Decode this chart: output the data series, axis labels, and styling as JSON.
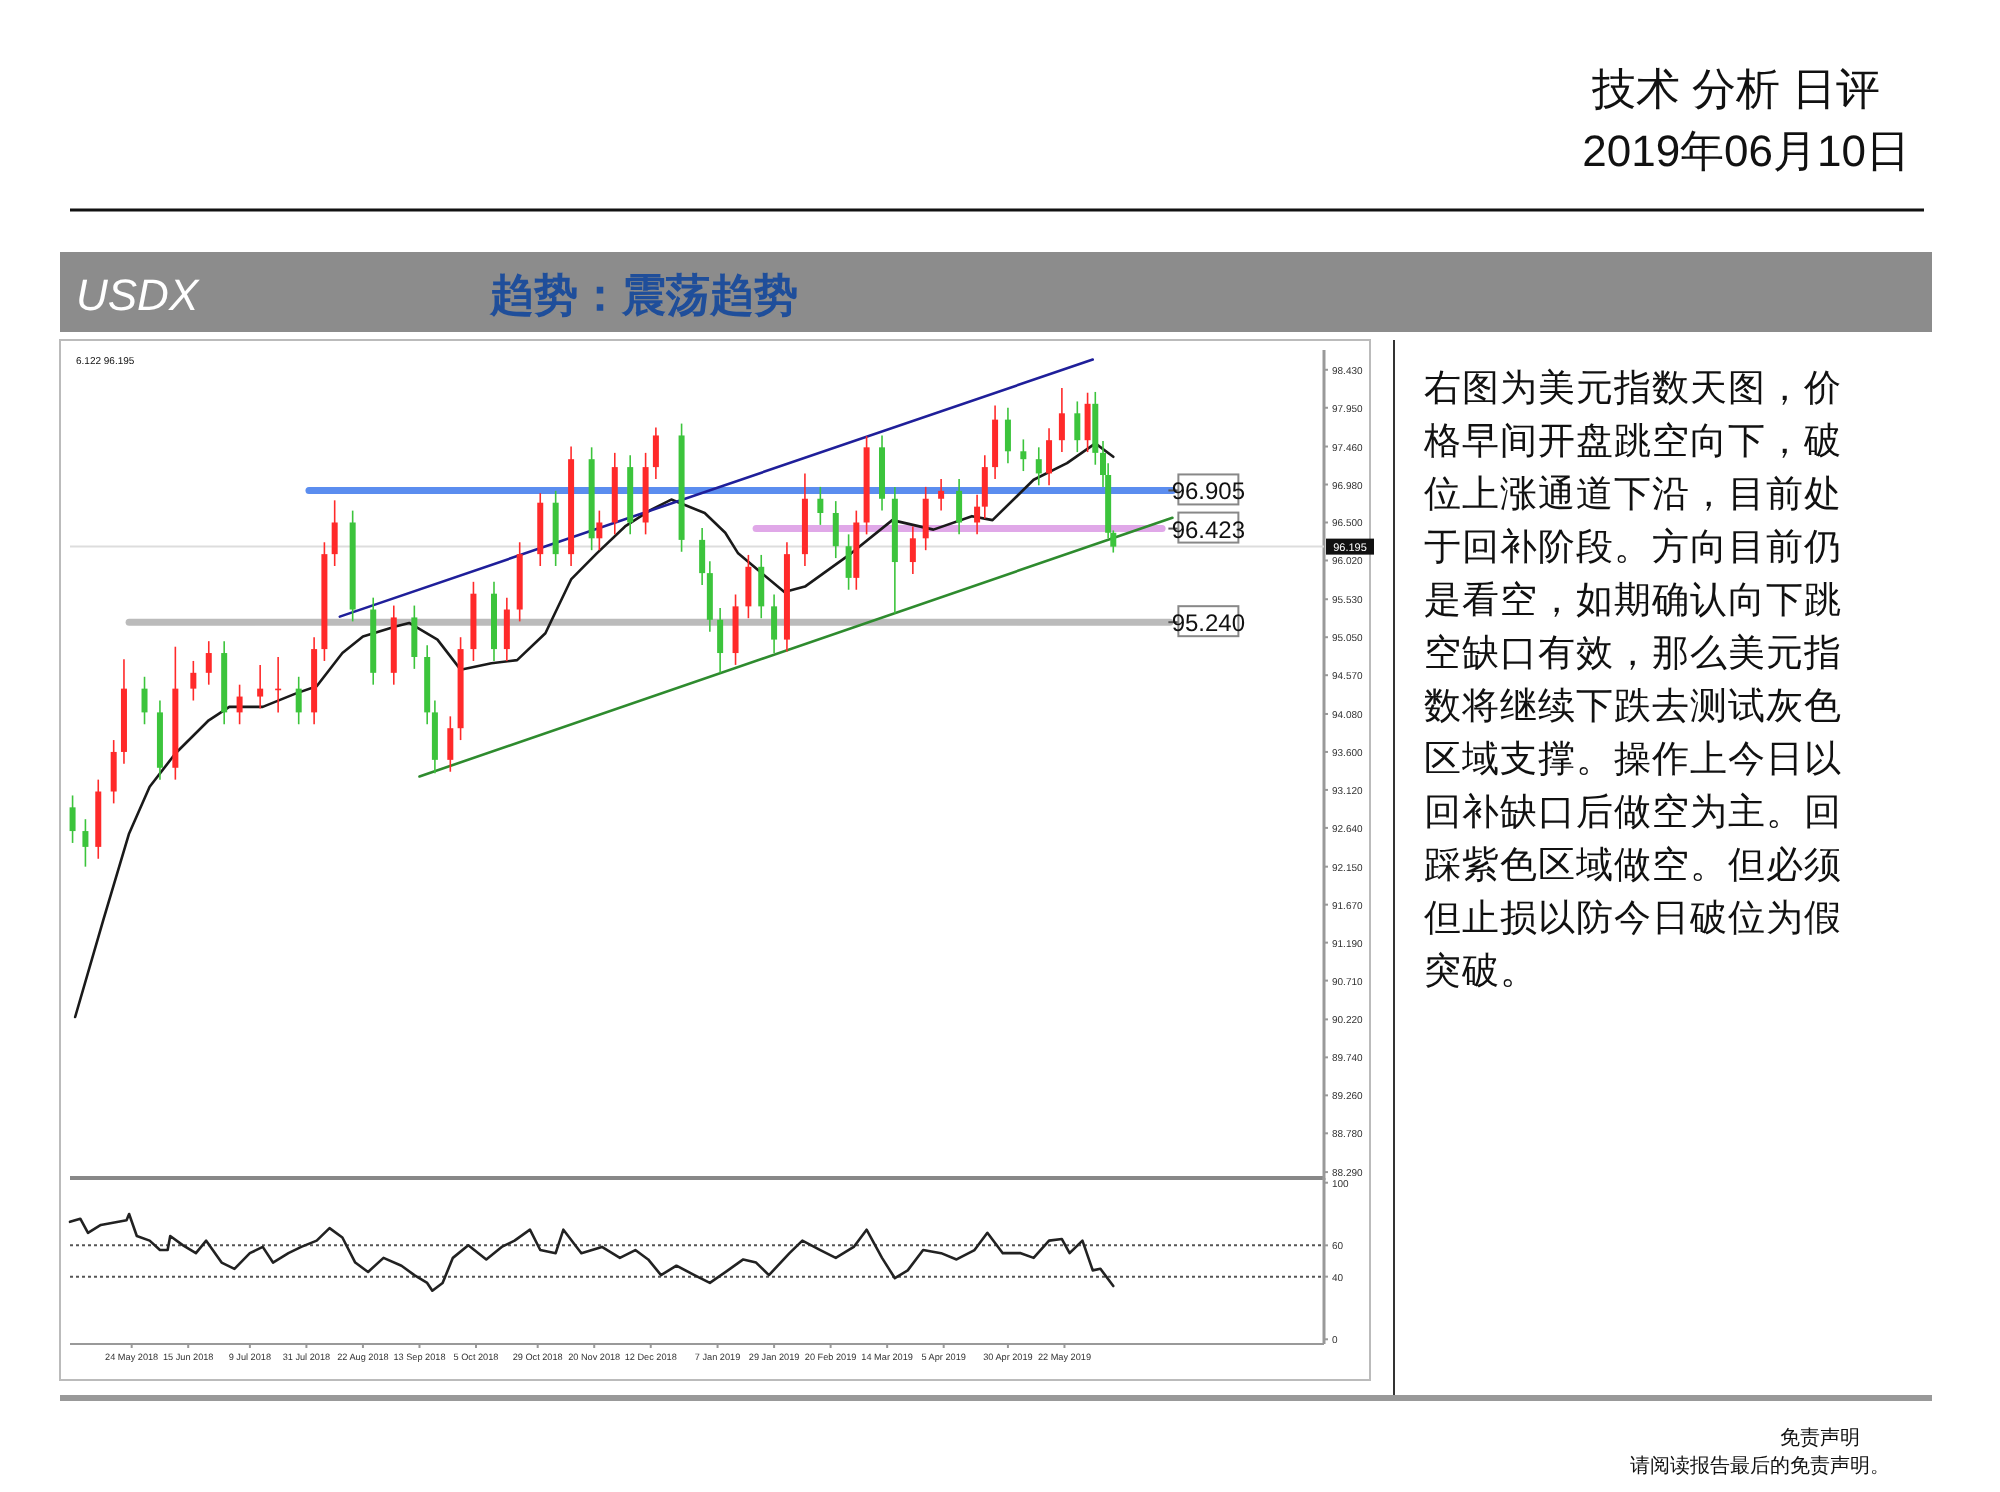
{
  "chart_data": [
    {
      "type": "candlestick",
      "title": "USDX",
      "subtitle": "趋势：震荡趋势",
      "tick_labels": "y",
      "annotations": [
        "技术 分析 日评",
        "2019年06月10日",
        "右图为美元指数天图，价格早间开盘跳空向下，破位上涨通道下沿，目前处于回补阶段。方向目前仍是看空，如期确认向下跳空缺口有效，那么美元指数将继续下跌去测试灰色区域支撑。操作上今日以回补缺口后做空为主。回踩紫色区域做空。但必须但止损以防今日破位为假突破。",
        "免责声明",
        "请阅读报告最后的免责声明。",
        "6.122 96.195",
        {
          "text": "96.905",
          "x": "2019-07-03",
          "y": 96.905
        },
        {
          "text": "96.423",
          "x": "2019-07-03",
          "y": 96.423
        },
        {
          "text": "95.240",
          "x": "2019-07-03",
          "y": 95.24
        }
      ],
      "xlim": [
        "2018-04-30",
        "2019-08-31"
      ],
      "ylim": [
        88.19,
        98.68
      ],
      "yticks": [
        {
          "value": 98.43,
          "label": "98.430"
        },
        {
          "value": 97.95,
          "label": "97.950"
        },
        {
          "value": 97.46,
          "label": "97.460"
        },
        {
          "value": 96.98,
          "label": "96.980"
        },
        {
          "value": 96.5,
          "label": "96.500"
        },
        {
          "value": 96.02,
          "label": "96.020"
        },
        {
          "value": 95.53,
          "label": "95.530"
        },
        {
          "value": 95.05,
          "label": "95.050"
        },
        {
          "value": 94.57,
          "label": "94.570"
        },
        {
          "value": 94.08,
          "label": "94.080"
        },
        {
          "value": 93.6,
          "label": "93.600"
        },
        {
          "value": 93.12,
          "label": "93.120"
        },
        {
          "value": 92.64,
          "label": "92.640"
        },
        {
          "value": 92.15,
          "label": "92.150"
        },
        {
          "value": 91.67,
          "label": "91.670"
        },
        {
          "value": 91.19,
          "label": "91.190"
        },
        {
          "value": 90.71,
          "label": "90.710"
        },
        {
          "value": 90.22,
          "label": "90.220"
        },
        {
          "value": 89.74,
          "label": "89.740"
        },
        {
          "value": 89.26,
          "label": "89.260"
        },
        {
          "value": 88.78,
          "label": "88.780"
        },
        {
          "value": 88.29,
          "label": "88.290"
        }
      ],
      "ref_lines": [
        {
          "axis": "y",
          "value": 96.195,
          "label": "96.195",
          "color": "#dddddd"
        }
      ],
      "x": [
        "2018-05-01",
        "2018-05-06",
        "2018-05-11",
        "2018-05-17",
        "2018-05-21",
        "2018-05-29",
        "2018-06-04",
        "2018-06-10",
        "2018-06-17",
        "2018-06-23",
        "2018-06-29",
        "2018-07-05",
        "2018-07-13",
        "2018-07-20",
        "2018-07-28",
        "2018-08-03",
        "2018-08-07",
        "2018-08-11",
        "2018-08-18",
        "2018-08-26",
        "2018-09-03",
        "2018-09-11",
        "2018-09-16",
        "2018-09-19",
        "2018-09-25",
        "2018-09-29",
        "2018-10-04",
        "2018-10-12",
        "2018-10-17",
        "2018-10-22",
        "2018-10-30",
        "2018-11-05",
        "2018-11-11",
        "2018-11-19",
        "2018-11-22",
        "2018-11-28",
        "2018-12-04",
        "2018-12-10",
        "2018-12-14",
        "2018-12-24",
        "2019-01-01",
        "2019-01-04",
        "2019-01-08",
        "2019-01-14",
        "2019-01-19",
        "2019-01-24",
        "2019-01-29",
        "2019-02-03",
        "2019-02-10",
        "2019-02-16",
        "2019-02-22",
        "2019-02-27",
        "2019-03-02",
        "2019-03-06",
        "2019-03-12",
        "2019-03-17",
        "2019-03-24",
        "2019-03-29",
        "2019-04-04",
        "2019-04-11",
        "2019-04-18",
        "2019-04-21",
        "2019-04-25",
        "2019-04-30",
        "2019-05-06",
        "2019-05-12",
        "2019-05-16",
        "2019-05-21",
        "2019-05-27",
        "2019-05-31",
        "2019-06-03",
        "2019-06-06",
        "2019-06-08",
        "2019-06-10"
      ],
      "ohlc": [
        [
          92.9,
          93.05,
          92.45,
          92.6
        ],
        [
          92.6,
          92.75,
          92.15,
          92.4
        ],
        [
          92.4,
          93.25,
          92.25,
          93.1
        ],
        [
          93.1,
          93.75,
          92.95,
          93.6
        ],
        [
          93.6,
          94.77,
          93.45,
          94.4
        ],
        [
          94.4,
          94.55,
          93.95,
          94.1
        ],
        [
          94.1,
          94.25,
          93.25,
          93.4
        ],
        [
          93.4,
          94.93,
          93.25,
          94.4
        ],
        [
          94.4,
          94.75,
          94.25,
          94.6
        ],
        [
          94.6,
          95.0,
          94.45,
          94.85
        ],
        [
          94.85,
          95.0,
          93.95,
          94.1
        ],
        [
          94.1,
          94.45,
          93.95,
          94.3
        ],
        [
          94.3,
          94.7,
          94.15,
          94.4
        ],
        [
          94.4,
          94.8,
          94.1,
          94.4
        ],
        [
          94.4,
          94.55,
          93.95,
          94.1
        ],
        [
          94.1,
          95.05,
          93.95,
          94.9
        ],
        [
          94.9,
          96.25,
          94.75,
          96.1
        ],
        [
          96.1,
          96.78,
          95.95,
          96.5
        ],
        [
          96.5,
          96.65,
          95.25,
          95.4
        ],
        [
          95.4,
          95.55,
          94.45,
          94.6
        ],
        [
          94.6,
          95.45,
          94.45,
          95.3
        ],
        [
          95.3,
          95.45,
          94.65,
          94.8
        ],
        [
          94.8,
          94.95,
          93.95,
          94.1
        ],
        [
          94.1,
          94.25,
          93.33,
          93.5
        ],
        [
          93.5,
          94.05,
          93.35,
          93.9
        ],
        [
          93.9,
          95.05,
          93.75,
          94.9
        ],
        [
          94.9,
          95.75,
          94.75,
          95.6
        ],
        [
          95.6,
          95.75,
          94.75,
          94.9
        ],
        [
          94.9,
          95.55,
          94.75,
          95.4
        ],
        [
          95.4,
          96.25,
          95.25,
          96.1
        ],
        [
          96.1,
          96.87,
          95.95,
          96.75
        ],
        [
          96.75,
          96.9,
          95.95,
          96.1
        ],
        [
          96.1,
          97.46,
          95.95,
          97.3
        ],
        [
          97.3,
          97.45,
          96.15,
          96.3
        ],
        [
          96.3,
          96.65,
          96.15,
          96.5
        ],
        [
          96.5,
          97.38,
          96.35,
          97.2
        ],
        [
          97.2,
          97.35,
          96.35,
          96.5
        ],
        [
          96.5,
          97.38,
          96.35,
          97.2
        ],
        [
          97.2,
          97.7,
          97.05,
          97.6
        ],
        [
          97.6,
          97.75,
          96.13,
          96.28
        ],
        [
          96.28,
          96.43,
          95.71,
          95.86
        ],
        [
          95.86,
          96.01,
          95.12,
          95.27
        ],
        [
          95.27,
          95.42,
          94.6,
          94.85
        ],
        [
          94.85,
          95.59,
          94.7,
          95.44
        ],
        [
          95.44,
          96.09,
          95.29,
          95.94
        ],
        [
          95.94,
          96.09,
          95.29,
          95.44
        ],
        [
          95.44,
          95.59,
          94.85,
          95.02
        ],
        [
          95.02,
          96.25,
          94.87,
          96.1
        ],
        [
          96.1,
          97.12,
          95.95,
          96.8
        ],
        [
          96.8,
          96.95,
          96.47,
          96.62
        ],
        [
          96.62,
          96.77,
          96.05,
          96.2
        ],
        [
          96.2,
          96.35,
          95.65,
          95.8
        ],
        [
          95.8,
          96.65,
          95.65,
          96.5
        ],
        [
          96.5,
          97.59,
          96.35,
          97.45
        ],
        [
          97.45,
          97.6,
          96.65,
          96.8
        ],
        [
          96.8,
          96.95,
          95.35,
          96.0
        ],
        [
          96.0,
          96.45,
          95.85,
          96.3
        ],
        [
          96.3,
          96.95,
          96.15,
          96.8
        ],
        [
          96.8,
          97.05,
          96.65,
          96.9
        ],
        [
          96.9,
          97.05,
          96.35,
          96.5
        ],
        [
          96.5,
          96.85,
          96.35,
          96.7
        ],
        [
          96.7,
          97.35,
          96.55,
          97.2
        ],
        [
          97.2,
          97.98,
          97.05,
          97.8
        ],
        [
          97.8,
          97.95,
          97.25,
          97.4
        ],
        [
          97.4,
          97.55,
          97.15,
          97.3
        ],
        [
          97.3,
          97.45,
          96.97,
          97.12
        ],
        [
          97.12,
          97.69,
          96.97,
          97.54
        ],
        [
          97.54,
          98.2,
          97.39,
          97.88
        ],
        [
          97.88,
          98.03,
          97.39,
          97.54
        ],
        [
          97.54,
          98.14,
          97.39,
          98.0
        ],
        [
          98.0,
          98.15,
          97.23,
          97.38
        ],
        [
          97.38,
          97.53,
          96.95,
          97.1
        ],
        [
          97.1,
          97.25,
          96.3,
          96.37
        ],
        [
          96.37,
          96.4,
          96.12,
          96.195
        ]
      ],
      "series": [
        {
          "type": "line",
          "color": "#1a1a1a",
          "x": [
            "2018-05-02",
            "2018-05-13",
            "2018-05-23",
            "2018-05-31",
            "2018-06-10",
            "2018-06-23",
            "2018-07-01",
            "2018-07-14",
            "2018-07-27",
            "2018-08-04",
            "2018-08-14",
            "2018-08-22",
            "2018-09-04",
            "2018-09-09",
            "2018-09-20",
            "2018-09-29",
            "2018-10-11",
            "2018-10-21",
            "2018-11-01",
            "2018-11-11",
            "2018-11-21",
            "2018-12-02",
            "2018-12-12",
            "2018-12-20",
            "2019-01-02",
            "2019-01-10",
            "2019-01-15",
            "2019-02-02",
            "2019-02-10",
            "2019-02-28",
            "2019-03-16",
            "2019-04-01",
            "2019-04-16",
            "2019-04-24",
            "2019-05-10",
            "2019-05-23",
            "2019-06-03",
            "2019-06-10"
          ],
          "values": [
            90.25,
            91.48,
            92.57,
            93.16,
            93.58,
            94.0,
            94.17,
            94.17,
            94.34,
            94.43,
            94.85,
            95.06,
            95.19,
            95.23,
            95.02,
            94.64,
            94.72,
            94.76,
            95.1,
            95.78,
            96.11,
            96.45,
            96.66,
            96.79,
            96.62,
            96.37,
            96.11,
            95.62,
            95.69,
            96.11,
            96.53,
            96.41,
            96.58,
            96.53,
            97.04,
            97.25,
            97.5,
            97.33
          ]
        },
        {
          "type": "line",
          "color": "#1f1f9a",
          "x": [
            "2018-08-13",
            "2019-06-02"
          ],
          "values": [
            95.31,
            98.56
          ]
        },
        {
          "type": "line",
          "color": "#2e8b2e",
          "x": [
            "2018-09-13",
            "2019-07-03"
          ],
          "values": [
            93.29,
            96.56
          ]
        },
        {
          "type": "line",
          "color": "#5b8def",
          "x": [
            "2018-08-01",
            "2019-07-03"
          ],
          "values": [
            96.905,
            96.905
          ]
        },
        {
          "type": "line",
          "color": "#e0a8e8",
          "x": [
            "2019-01-22",
            "2019-06-29"
          ],
          "values": [
            96.423,
            96.423
          ]
        },
        {
          "type": "line",
          "color": "#bbbbbb",
          "x": [
            "2018-05-23",
            "2019-07-02"
          ],
          "values": [
            95.24,
            95.24
          ]
        }
      ]
    },
    {
      "type": "line",
      "xlim": [
        "2018-04-30",
        "2019-08-31"
      ],
      "ylim": [
        -3,
        103
      ],
      "yticks": [
        0,
        40,
        60,
        100
      ],
      "xticks": [
        {
          "value": "2018-05-24",
          "label": "24 May 2018"
        },
        {
          "value": "2018-06-15",
          "label": "15 Jun 2018"
        },
        {
          "value": "2018-07-09",
          "label": "9 Jul 2018"
        },
        {
          "value": "2018-07-31",
          "label": "31 Jul 2018"
        },
        {
          "value": "2018-08-22",
          "label": "22 Aug 2018"
        },
        {
          "value": "2018-09-13",
          "label": "13 Sep 2018"
        },
        {
          "value": "2018-10-05",
          "label": "5 Oct 2018"
        },
        {
          "value": "2018-10-29",
          "label": "29 Oct 2018"
        },
        {
          "value": "2018-11-20",
          "label": "20 Nov 2018"
        },
        {
          "value": "2018-12-12",
          "label": "12 Dec 2018"
        },
        {
          "value": "2019-01-07",
          "label": "7 Jan 2019"
        },
        {
          "value": "2019-01-29",
          "label": "29 Jan 2019"
        },
        {
          "value": "2019-02-20",
          "label": "20 Feb 2019"
        },
        {
          "value": "2019-03-14",
          "label": "14 Mar 2019"
        },
        {
          "value": "2019-04-05",
          "label": "5 Apr 2019"
        },
        {
          "value": "2019-04-30",
          "label": "30 Apr 2019"
        },
        {
          "value": "2019-05-22",
          "label": "22 May 2019"
        }
      ],
      "ref_lines": [
        {
          "axis": "y",
          "value": 60,
          "color": "#555555",
          "line_style": "dotted"
        },
        {
          "axis": "y",
          "value": 40,
          "color": "#555555",
          "line_style": "dotted"
        }
      ],
      "series": [
        {
          "color": "#222222",
          "x": [
            "2018-04-30",
            "2018-05-04",
            "2018-05-07",
            "2018-05-12",
            "2018-05-22",
            "2018-05-23",
            "2018-05-26",
            "2018-05-31",
            "2018-06-04",
            "2018-06-07",
            "2018-06-08",
            "2018-06-13",
            "2018-06-18",
            "2018-06-22",
            "2018-06-28",
            "2018-07-03",
            "2018-07-09",
            "2018-07-14",
            "2018-07-18",
            "2018-07-24",
            "2018-07-29",
            "2018-08-04",
            "2018-08-09",
            "2018-08-14",
            "2018-08-19",
            "2018-08-24",
            "2018-08-30",
            "2018-09-06",
            "2018-09-11",
            "2018-09-16",
            "2018-09-18",
            "2018-09-22",
            "2018-09-26",
            "2018-10-02",
            "2018-10-09",
            "2018-10-15",
            "2018-10-20",
            "2018-10-26",
            "2018-10-30",
            "2018-11-05",
            "2018-11-08",
            "2018-11-15",
            "2018-11-23",
            "2018-11-30",
            "2018-12-06",
            "2018-12-11",
            "2018-12-16",
            "2018-12-22",
            "2018-12-29",
            "2019-01-04",
            "2019-01-11",
            "2019-01-17",
            "2019-01-22",
            "2019-01-27",
            "2019-02-04",
            "2019-02-09",
            "2019-02-16",
            "2019-02-22",
            "2019-03-01",
            "2019-03-06",
            "2019-03-12",
            "2019-03-17",
            "2019-03-22",
            "2019-03-28",
            "2019-04-04",
            "2019-04-10",
            "2019-04-17",
            "2019-04-22",
            "2019-04-28",
            "2019-05-05",
            "2019-05-10",
            "2019-05-16",
            "2019-05-21",
            "2019-05-24",
            "2019-05-29",
            "2019-06-02",
            "2019-06-05",
            "2019-06-10"
          ],
          "values": [
            75,
            77,
            68,
            73,
            76,
            80,
            66,
            63,
            57,
            57,
            66,
            60,
            55,
            63,
            49,
            45,
            55,
            59,
            49,
            55,
            59,
            63,
            71,
            65,
            49,
            43,
            52,
            47,
            41,
            36,
            31,
            36,
            52,
            60,
            51,
            59,
            63,
            70,
            57,
            55,
            70,
            55,
            59,
            52,
            57,
            51,
            41,
            47,
            41,
            36,
            44,
            51,
            49,
            41,
            55,
            63,
            57,
            52,
            59,
            70,
            52,
            39,
            44,
            57,
            55,
            51,
            57,
            68,
            55,
            55,
            52,
            63,
            64,
            55,
            63,
            44,
            45,
            34
          ]
        }
      ]
    }
  ]
}
